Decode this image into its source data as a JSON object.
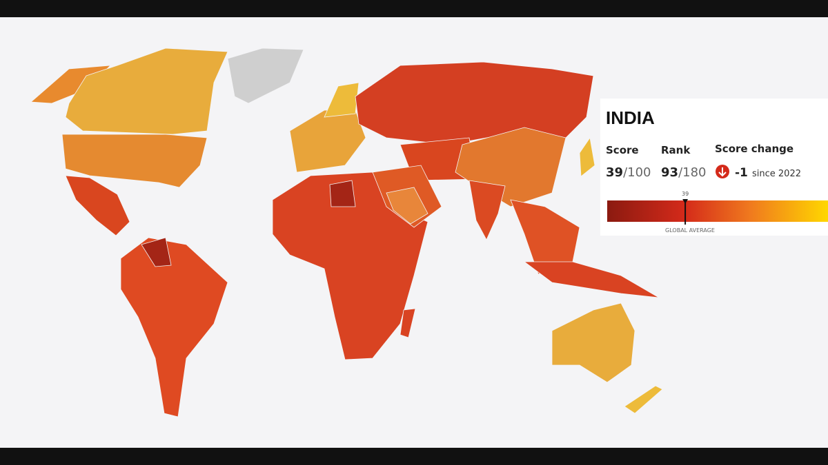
{
  "panel": {
    "country": "INDIA",
    "score_label": "Score",
    "score": 39,
    "score_max": "/100",
    "rank_label": "Rank",
    "rank": 93,
    "rank_total": "/180",
    "change_label": "Score change",
    "change": -1,
    "change_since": "since 2022",
    "marker": 39,
    "scale_max": 100,
    "global_average_label": "GLOBAL AVERAGE"
  }
}
